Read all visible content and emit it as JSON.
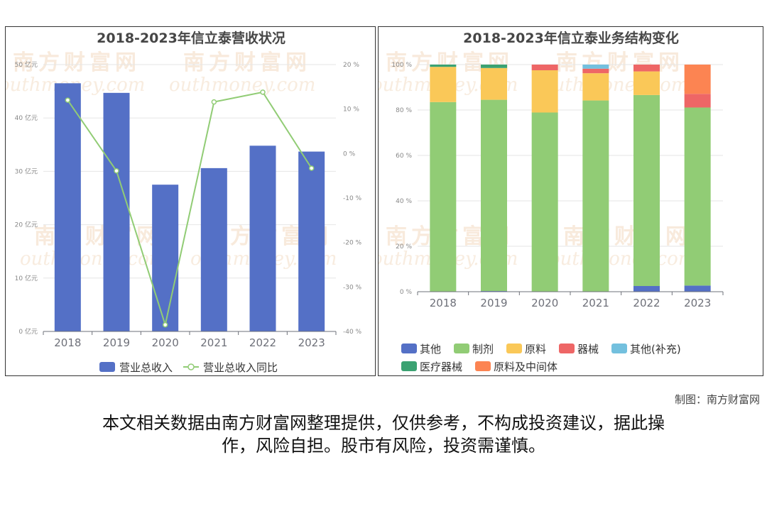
{
  "chart_data": [
    {
      "type": "bar+line",
      "title": "2018-2023年信立泰营收状况",
      "categories": [
        "2018",
        "2019",
        "2020",
        "2021",
        "2022",
        "2023"
      ],
      "series": [
        {
          "name": "营业总收入",
          "type": "bar",
          "axis": "left",
          "unit": "亿元",
          "color": "#5470c6",
          "values": [
            46.5,
            44.7,
            27.5,
            30.6,
            34.8,
            33.7
          ]
        },
        {
          "name": "营业总收入同比",
          "type": "line",
          "axis": "right",
          "unit": "%",
          "color": "#91cc75",
          "values": [
            12.0,
            -3.9,
            -38.5,
            11.6,
            13.8,
            -3.3
          ]
        }
      ],
      "y_left": {
        "min": 0,
        "max": 50,
        "ticks": [
          0,
          10,
          20,
          30,
          40,
          50
        ],
        "tick_labels": [
          "0 亿元",
          "10 亿元",
          "20 亿元",
          "30 亿元",
          "40 亿元",
          "50 亿元"
        ]
      },
      "y_right": {
        "min": -40,
        "max": 20,
        "ticks": [
          -40,
          -30,
          -20,
          -10,
          0,
          10,
          20
        ],
        "tick_labels": [
          "-40 %",
          "-30 %",
          "-20 %",
          "-10 %",
          "0 %",
          "10 %",
          "20 %"
        ]
      },
      "grid": true,
      "legend": "bottom-center"
    },
    {
      "type": "stacked-bar",
      "title": "2018-2023年信立泰业务结构变化",
      "categories": [
        "2018",
        "2019",
        "2020",
        "2021",
        "2022",
        "2023"
      ],
      "series": [
        {
          "name": "其他",
          "color": "#5470c6",
          "values": [
            0,
            0.3,
            0,
            0,
            2.5,
            2.7
          ]
        },
        {
          "name": "制剂",
          "color": "#91cc75",
          "values": [
            83.5,
            84.2,
            78.9,
            84.2,
            84.1,
            78.4
          ]
        },
        {
          "name": "原料",
          "color": "#fac858",
          "values": [
            15.5,
            14.0,
            18.6,
            12.0,
            10.4,
            0
          ]
        },
        {
          "name": "器械",
          "color": "#ee6666",
          "values": [
            0,
            0,
            2.5,
            2.0,
            3.0,
            6.0
          ]
        },
        {
          "name": "其他(补充)",
          "color": "#73c0de",
          "values": [
            0,
            0,
            0,
            1.8,
            0,
            0
          ]
        },
        {
          "name": "医疗器械",
          "color": "#3ba272",
          "values": [
            1.0,
            1.5,
            0,
            0,
            0,
            0
          ]
        },
        {
          "name": "原料及中间体",
          "color": "#fc8452",
          "values": [
            0,
            0,
            0,
            0,
            0,
            12.9
          ]
        }
      ],
      "y": {
        "min": 0,
        "max": 100,
        "ticks": [
          0,
          20,
          40,
          60,
          80,
          100
        ],
        "tick_labels": [
          "0 %",
          "20 %",
          "40 %",
          "60 %",
          "80 %",
          "100 %"
        ]
      },
      "grid": true,
      "legend": "bottom-left"
    }
  ],
  "watermark": {
    "cn": "南方财富网",
    "en": "outhmoney.com"
  },
  "footer": {
    "credit": "制图：南方财富网",
    "disclaimer_line1": "本文相关数据由南方财富网整理提供，仅供参考，不构成投资建议，据此操",
    "disclaimer_line2": "作，风险自担。股市有风险，投资需谨慎。"
  }
}
